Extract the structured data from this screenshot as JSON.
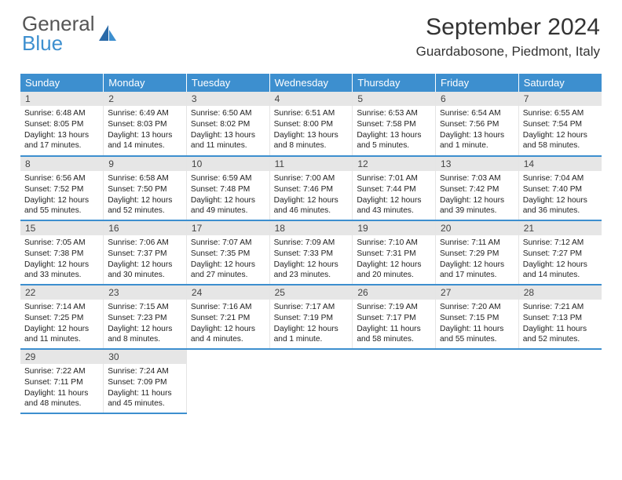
{
  "brand": {
    "part1": "General",
    "part2": "Blue"
  },
  "title": "September 2024",
  "location": "Guardabosone, Piedmont, Italy",
  "weekday_header_bg": "#3d8fcf",
  "daynum_bg": "#e6e6e6",
  "cell_border_bottom": "#3d8fcf",
  "weekdays": [
    "Sunday",
    "Monday",
    "Tuesday",
    "Wednesday",
    "Thursday",
    "Friday",
    "Saturday"
  ],
  "days": [
    {
      "n": "1",
      "sr": "6:48 AM",
      "ss": "8:05 PM",
      "dl": "13 hours and 17 minutes."
    },
    {
      "n": "2",
      "sr": "6:49 AM",
      "ss": "8:03 PM",
      "dl": "13 hours and 14 minutes."
    },
    {
      "n": "3",
      "sr": "6:50 AM",
      "ss": "8:02 PM",
      "dl": "13 hours and 11 minutes."
    },
    {
      "n": "4",
      "sr": "6:51 AM",
      "ss": "8:00 PM",
      "dl": "13 hours and 8 minutes."
    },
    {
      "n": "5",
      "sr": "6:53 AM",
      "ss": "7:58 PM",
      "dl": "13 hours and 5 minutes."
    },
    {
      "n": "6",
      "sr": "6:54 AM",
      "ss": "7:56 PM",
      "dl": "13 hours and 1 minute."
    },
    {
      "n": "7",
      "sr": "6:55 AM",
      "ss": "7:54 PM",
      "dl": "12 hours and 58 minutes."
    },
    {
      "n": "8",
      "sr": "6:56 AM",
      "ss": "7:52 PM",
      "dl": "12 hours and 55 minutes."
    },
    {
      "n": "9",
      "sr": "6:58 AM",
      "ss": "7:50 PM",
      "dl": "12 hours and 52 minutes."
    },
    {
      "n": "10",
      "sr": "6:59 AM",
      "ss": "7:48 PM",
      "dl": "12 hours and 49 minutes."
    },
    {
      "n": "11",
      "sr": "7:00 AM",
      "ss": "7:46 PM",
      "dl": "12 hours and 46 minutes."
    },
    {
      "n": "12",
      "sr": "7:01 AM",
      "ss": "7:44 PM",
      "dl": "12 hours and 43 minutes."
    },
    {
      "n": "13",
      "sr": "7:03 AM",
      "ss": "7:42 PM",
      "dl": "12 hours and 39 minutes."
    },
    {
      "n": "14",
      "sr": "7:04 AM",
      "ss": "7:40 PM",
      "dl": "12 hours and 36 minutes."
    },
    {
      "n": "15",
      "sr": "7:05 AM",
      "ss": "7:38 PM",
      "dl": "12 hours and 33 minutes."
    },
    {
      "n": "16",
      "sr": "7:06 AM",
      "ss": "7:37 PM",
      "dl": "12 hours and 30 minutes."
    },
    {
      "n": "17",
      "sr": "7:07 AM",
      "ss": "7:35 PM",
      "dl": "12 hours and 27 minutes."
    },
    {
      "n": "18",
      "sr": "7:09 AM",
      "ss": "7:33 PM",
      "dl": "12 hours and 23 minutes."
    },
    {
      "n": "19",
      "sr": "7:10 AM",
      "ss": "7:31 PM",
      "dl": "12 hours and 20 minutes."
    },
    {
      "n": "20",
      "sr": "7:11 AM",
      "ss": "7:29 PM",
      "dl": "12 hours and 17 minutes."
    },
    {
      "n": "21",
      "sr": "7:12 AM",
      "ss": "7:27 PM",
      "dl": "12 hours and 14 minutes."
    },
    {
      "n": "22",
      "sr": "7:14 AM",
      "ss": "7:25 PM",
      "dl": "12 hours and 11 minutes."
    },
    {
      "n": "23",
      "sr": "7:15 AM",
      "ss": "7:23 PM",
      "dl": "12 hours and 8 minutes."
    },
    {
      "n": "24",
      "sr": "7:16 AM",
      "ss": "7:21 PM",
      "dl": "12 hours and 4 minutes."
    },
    {
      "n": "25",
      "sr": "7:17 AM",
      "ss": "7:19 PM",
      "dl": "12 hours and 1 minute."
    },
    {
      "n": "26",
      "sr": "7:19 AM",
      "ss": "7:17 PM",
      "dl": "11 hours and 58 minutes."
    },
    {
      "n": "27",
      "sr": "7:20 AM",
      "ss": "7:15 PM",
      "dl": "11 hours and 55 minutes."
    },
    {
      "n": "28",
      "sr": "7:21 AM",
      "ss": "7:13 PM",
      "dl": "11 hours and 52 minutes."
    },
    {
      "n": "29",
      "sr": "7:22 AM",
      "ss": "7:11 PM",
      "dl": "11 hours and 48 minutes."
    },
    {
      "n": "30",
      "sr": "7:24 AM",
      "ss": "7:09 PM",
      "dl": "11 hours and 45 minutes."
    }
  ],
  "labels": {
    "sunrise": "Sunrise:",
    "sunset": "Sunset:",
    "daylight": "Daylight:"
  }
}
